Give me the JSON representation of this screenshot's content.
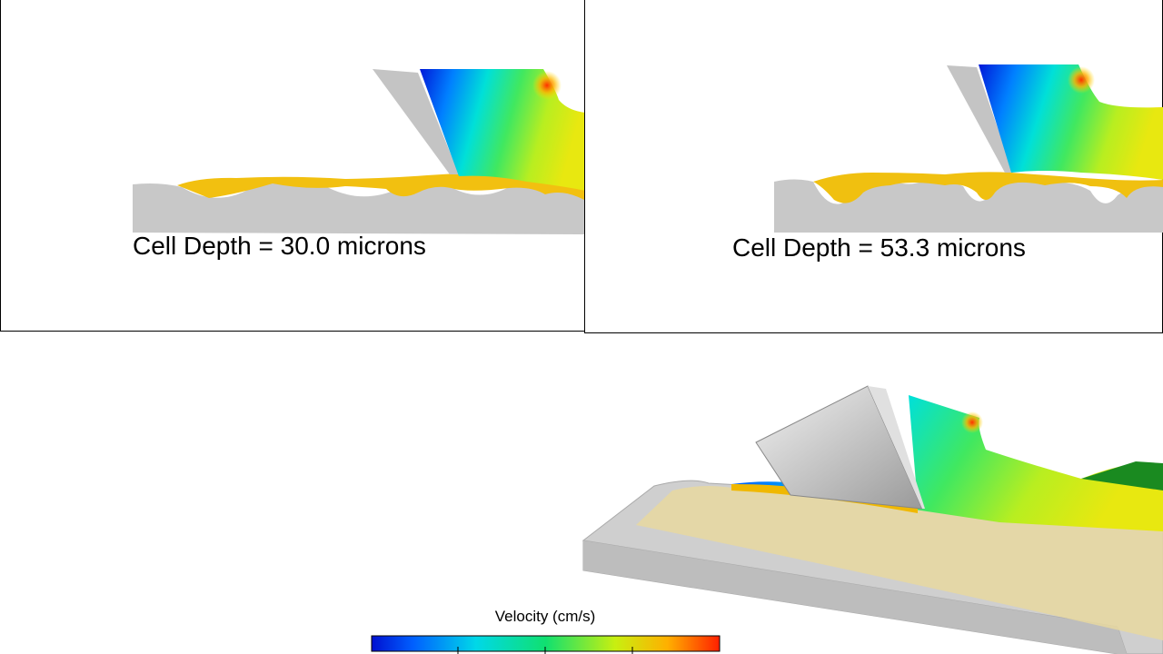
{
  "panels": [
    {
      "label": "Cell Depth = 30.0 microns"
    },
    {
      "label": "Cell Depth = 53.3 microns"
    }
  ],
  "colorbar": {
    "title": "Velocity (cm/s)"
  }
}
